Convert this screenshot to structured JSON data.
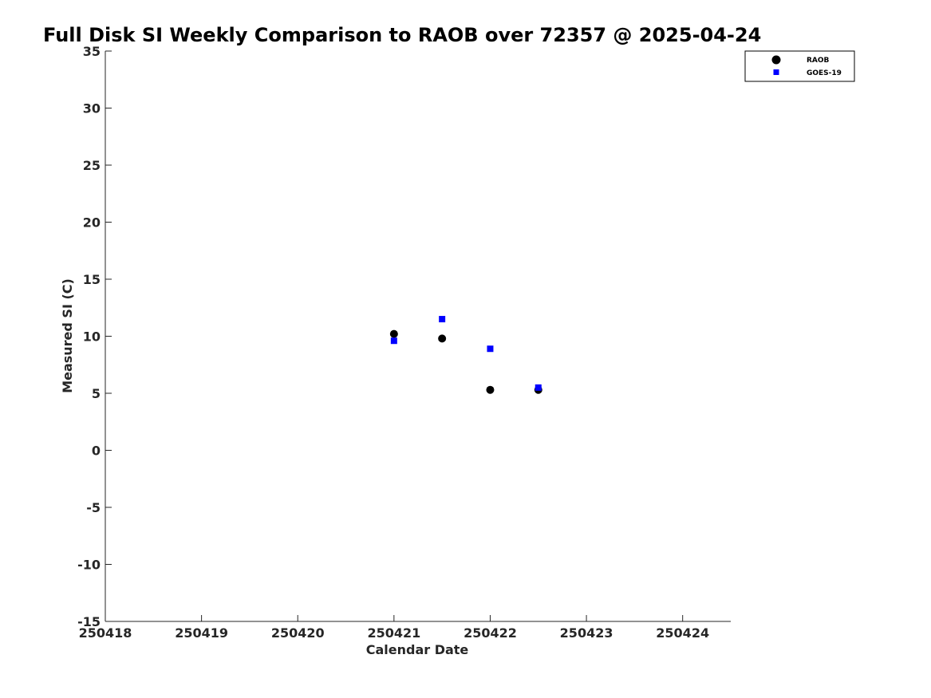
{
  "chart_data": {
    "type": "scatter",
    "title": "Full Disk SI Weekly Comparison to RAOB over 72357 @ 2025-04-24",
    "xlabel": "Calendar Date",
    "ylabel": "Measured SI (C)",
    "xlim": [
      250418,
      250424.5
    ],
    "ylim": [
      -15,
      35
    ],
    "xticks": [
      250418,
      250419,
      250420,
      250421,
      250422,
      250423,
      250424
    ],
    "xtick_labels": [
      "250418",
      "250419",
      "250420",
      "250421",
      "250422",
      "250423",
      "250424"
    ],
    "yticks": [
      35,
      30,
      25,
      20,
      15,
      10,
      5,
      0,
      -5,
      -10,
      -15
    ],
    "ytick_labels": [
      "35",
      "30",
      "25",
      "20",
      "15",
      "10",
      "5",
      "0",
      "-5",
      "-10",
      "-15"
    ],
    "legend_position": "top-right",
    "series": [
      {
        "name": "RAOB",
        "marker": "circle",
        "color": "#000000",
        "x": [
          250421,
          250421.5,
          250422,
          250422.5
        ],
        "y": [
          10.2,
          9.8,
          5.3,
          5.3
        ]
      },
      {
        "name": "GOES-19",
        "marker": "square",
        "color": "#0000ff",
        "x": [
          250421,
          250421.5,
          250422,
          250422.5
        ],
        "y": [
          9.6,
          11.5,
          8.9,
          5.5
        ]
      }
    ]
  }
}
